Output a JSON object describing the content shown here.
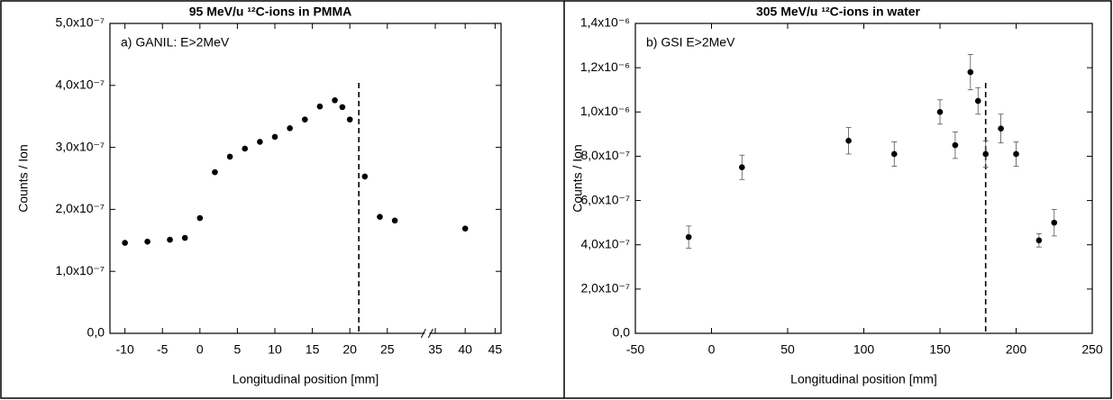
{
  "chart_data": [
    {
      "type": "scatter",
      "title": "95 MeV/u ¹²C-ions in PMMA",
      "annotation": "a) GANIL:  E>2MeV",
      "xlabel": "Longitudinal position [mm]",
      "ylabel": "Counts / Ion",
      "color": "#000000",
      "x": [
        -10,
        -7,
        -4,
        -2,
        0,
        2,
        4,
        6,
        8,
        10,
        12,
        14,
        16,
        18,
        19,
        20,
        22,
        24,
        26,
        40
      ],
      "values": [
        1.46e-07,
        1.48e-07,
        1.51e-07,
        1.54e-07,
        1.86e-07,
        2.6e-07,
        2.85e-07,
        2.98e-07,
        3.09e-07,
        3.17e-07,
        3.31e-07,
        3.45e-07,
        3.66e-07,
        3.76e-07,
        3.65e-07,
        3.45e-07,
        2.53e-07,
        1.88e-07,
        1.82e-07,
        1.69e-07
      ],
      "xlim": [
        -12,
        46
      ],
      "xbreak": [
        30,
        34
      ],
      "xticks": [
        -10,
        -5,
        0,
        5,
        10,
        15,
        20,
        25,
        35,
        40,
        45
      ],
      "ylim": [
        0,
        5e-07
      ],
      "yticks": [
        {
          "value": 0,
          "label": "0,0"
        },
        {
          "value": 1e-07,
          "label": "1,0x10⁻⁷"
        },
        {
          "value": 2e-07,
          "label": "2,0x10⁻⁷"
        },
        {
          "value": 3e-07,
          "label": "3,0x10⁻⁷"
        },
        {
          "value": 4e-07,
          "label": "4,0x10⁻⁷"
        },
        {
          "value": 5e-07,
          "label": "5,0x10⁻⁷"
        }
      ],
      "vline": 21.2
    },
    {
      "type": "scatter",
      "title": "305 MeV/u ¹²C-ions in water",
      "annotation": "b) GSI E>2MeV",
      "xlabel": "Longitudinal position [mm]",
      "ylabel": "Counts / Ion",
      "color": "#000000",
      "x": [
        -15,
        20,
        90,
        120,
        150,
        160,
        170,
        175,
        180,
        190,
        200,
        215,
        225
      ],
      "values": [
        4.35e-07,
        7.5e-07,
        8.7e-07,
        8.1e-07,
        1e-06,
        8.5e-07,
        1.18e-06,
        1.05e-06,
        8.1e-07,
        9.25e-07,
        8.1e-07,
        4.2e-07,
        5e-07
      ],
      "errors": [
        5e-08,
        5.5e-08,
        6e-08,
        5.5e-08,
        5.5e-08,
        6e-08,
        8e-08,
        6e-08,
        6e-08,
        6.5e-08,
        5.5e-08,
        3e-08,
        6e-08
      ],
      "xlim": [
        -50,
        250
      ],
      "xticks": [
        -50,
        0,
        50,
        100,
        150,
        200,
        250
      ],
      "ylim": [
        0,
        1.4e-06
      ],
      "yticks": [
        {
          "value": 0,
          "label": "0,0"
        },
        {
          "value": 2e-07,
          "label": "2,0x10⁻⁷"
        },
        {
          "value": 4e-07,
          "label": "4,0x10⁻⁷"
        },
        {
          "value": 6e-07,
          "label": "6,0x10⁻⁷"
        },
        {
          "value": 8e-07,
          "label": "8,0x10⁻⁷"
        },
        {
          "value": 1e-06,
          "label": "1,0x10⁻⁶"
        },
        {
          "value": 1.2e-06,
          "label": "1,2x10⁻⁶"
        },
        {
          "value": 1.4e-06,
          "label": "1,4x10⁻⁶"
        }
      ],
      "vline": 180
    }
  ]
}
